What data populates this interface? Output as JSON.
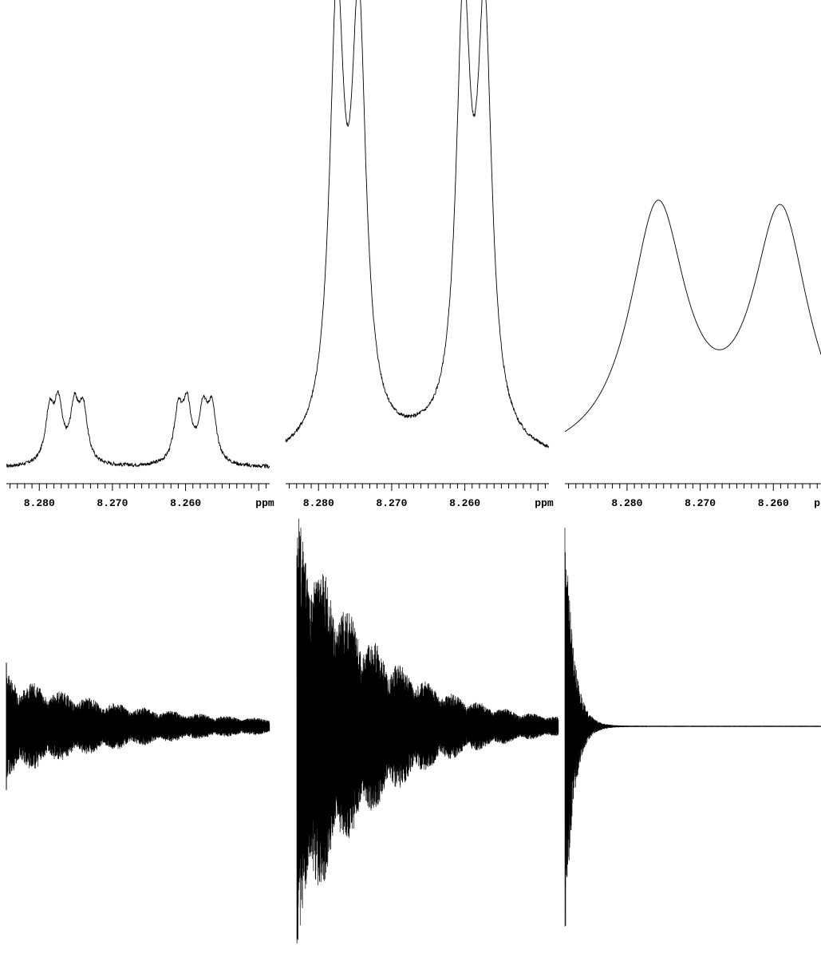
{
  "chart_data": [
    {
      "type": "line",
      "panel": "spectrum-1",
      "xlabel": "ppm",
      "x_reversed": true,
      "xlim": [
        8.2845,
        8.2485
      ],
      "xticks": [
        8.28,
        8.27,
        8.26
      ],
      "xtick_labels": [
        "8.280",
        "8.270",
        "8.260"
      ],
      "ylim": [
        0,
        1.0
      ],
      "baseline_noise": 0.004,
      "peaks": [
        {
          "center": 8.2786,
          "height": 0.108,
          "width": 0.0007
        },
        {
          "center": 8.2774,
          "height": 0.122,
          "width": 0.0007
        },
        {
          "center": 8.2752,
          "height": 0.115,
          "width": 0.0007
        },
        {
          "center": 8.274,
          "height": 0.115,
          "width": 0.0007
        },
        {
          "center": 8.261,
          "height": 0.11,
          "width": 0.0007
        },
        {
          "center": 8.2598,
          "height": 0.12,
          "width": 0.0007
        },
        {
          "center": 8.2576,
          "height": 0.112,
          "width": 0.0007
        },
        {
          "center": 8.2564,
          "height": 0.117,
          "width": 0.0007
        }
      ]
    },
    {
      "type": "line",
      "panel": "spectrum-2",
      "xlabel": "ppm",
      "x_reversed": true,
      "xlim": [
        8.2845,
        8.2485
      ],
      "xticks": [
        8.28,
        8.27,
        8.26
      ],
      "xtick_labels": [
        "8.280",
        "8.270",
        "8.260"
      ],
      "ylim": [
        0,
        1.0
      ],
      "baseline_offset": 0.04,
      "baseline_noise": 0.004,
      "peaks": [
        {
          "center": 8.2775,
          "height": 0.93,
          "width": 0.0012
        },
        {
          "center": 8.2745,
          "height": 0.9,
          "width": 0.0012
        },
        {
          "center": 8.2602,
          "height": 0.91,
          "width": 0.0012
        },
        {
          "center": 8.2573,
          "height": 0.89,
          "width": 0.0012
        }
      ]
    },
    {
      "type": "line",
      "panel": "spectrum-3",
      "xlabel": "ppm",
      "x_reversed": true,
      "xlim": [
        8.2885,
        8.2525
      ],
      "xticks": [
        8.28,
        8.27,
        8.26
      ],
      "xtick_labels": [
        "8.280",
        "8.270",
        "8.260"
      ],
      "ylim": [
        0,
        1.0
      ],
      "peaks": [
        {
          "center": 8.2758,
          "height": 0.545,
          "width": 0.0047
        },
        {
          "center": 8.259,
          "height": 0.535,
          "width": 0.0047
        }
      ]
    },
    {
      "type": "line",
      "panel": "fid-1",
      "envelope": {
        "amplitude": 0.23,
        "decay": 2.0,
        "beats": [
          0.35,
          0.35
        ],
        "beat_freq": 9.5
      },
      "points": 2600,
      "start_marker": 0.28
    },
    {
      "type": "line",
      "panel": "fid-2",
      "envelope": {
        "amplitude": 1.05,
        "decay": 3.2,
        "beats": [
          0.32,
          0.2
        ],
        "beat_freq": 10
      },
      "points": 3000
    },
    {
      "type": "line",
      "panel": "fid-3",
      "envelope": {
        "amplitude": 1.05,
        "decay": 30
      },
      "points": 2400
    }
  ]
}
